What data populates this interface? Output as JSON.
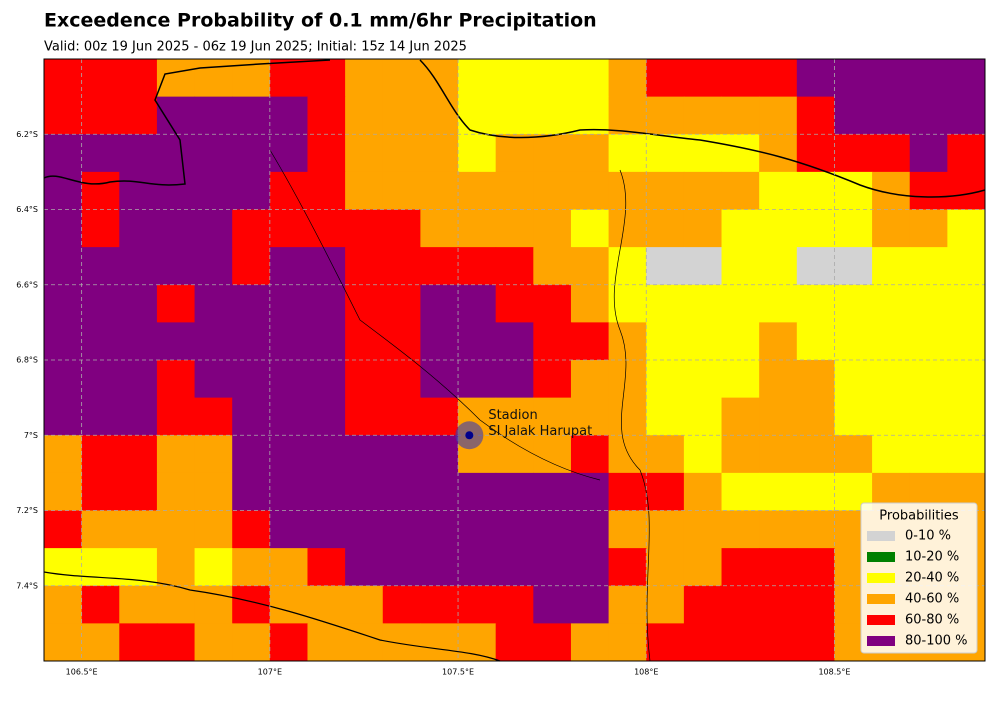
{
  "chart_data": {
    "type": "map",
    "title": "Exceedence Probability of 0.1 mm/6hr Precipitation",
    "subtitle": "Valid: 00z 19 Jun 2025 - 06z 19 Jun 2025; Initial: 15z 14 Jun 2025",
    "xlim": [
      106.4,
      108.9
    ],
    "ylim": [
      -7.6,
      -6.0
    ],
    "xticks": [
      {
        "value": 106.5,
        "label": "106.5°E"
      },
      {
        "value": 107,
        "label": "107°E"
      },
      {
        "value": 107.5,
        "label": "107.5°E"
      },
      {
        "value": 108,
        "label": "108°E"
      },
      {
        "value": 108.5,
        "label": "108.5°E"
      }
    ],
    "yticks": [
      {
        "value": -6.2,
        "label": "6.2°S"
      },
      {
        "value": -6.4,
        "label": "6.4°S"
      },
      {
        "value": -6.6,
        "label": "6.6°S"
      },
      {
        "value": -6.8,
        "label": "6.8°S"
      },
      {
        "value": -7.0,
        "label": "7°S"
      },
      {
        "value": -7.2,
        "label": "7.2°S"
      },
      {
        "value": -7.4,
        "label": "7.4°S"
      }
    ],
    "grid": true,
    "legend": {
      "title": "Probabilities",
      "position": "lower right",
      "labels": [
        "0-10 %",
        "10-20 %",
        "20-40 %",
        "40-60 %",
        "60-80 %",
        "80-100 %"
      ],
      "colors": [
        "#d3d3d3",
        "#008000",
        "#ffff00",
        "#ffa500",
        "#ff0000",
        "#800080"
      ]
    },
    "cells": [
      [
        4,
        4,
        4,
        3,
        3,
        3,
        4,
        4,
        3,
        3,
        3,
        2,
        2,
        2,
        2,
        3,
        4,
        4,
        4,
        4,
        5,
        5,
        5,
        5,
        5
      ],
      [
        4,
        4,
        4,
        5,
        5,
        5,
        5,
        4,
        3,
        3,
        3,
        2,
        2,
        2,
        2,
        3,
        3,
        3,
        3,
        3,
        4,
        5,
        5,
        5,
        5
      ],
      [
        5,
        5,
        5,
        5,
        5,
        5,
        5,
        4,
        3,
        3,
        3,
        2,
        3,
        3,
        3,
        2,
        2,
        2,
        2,
        3,
        4,
        4,
        4,
        5,
        4
      ],
      [
        5,
        4,
        5,
        5,
        5,
        5,
        4,
        4,
        3,
        3,
        3,
        3,
        3,
        3,
        3,
        3,
        3,
        3,
        3,
        2,
        2,
        2,
        3,
        4,
        4
      ],
      [
        5,
        4,
        5,
        5,
        5,
        4,
        4,
        4,
        4,
        4,
        3,
        3,
        3,
        3,
        2,
        3,
        3,
        3,
        2,
        2,
        2,
        2,
        3,
        3,
        2
      ],
      [
        5,
        5,
        5,
        5,
        5,
        4,
        5,
        5,
        4,
        4,
        4,
        4,
        4,
        3,
        3,
        2,
        0,
        0,
        2,
        2,
        0,
        0,
        2,
        2,
        2
      ],
      [
        5,
        5,
        5,
        4,
        5,
        5,
        5,
        5,
        4,
        4,
        5,
        5,
        4,
        4,
        3,
        2,
        2,
        2,
        2,
        2,
        2,
        2,
        2,
        2,
        2
      ],
      [
        5,
        5,
        5,
        5,
        5,
        5,
        5,
        5,
        4,
        4,
        5,
        5,
        5,
        4,
        4,
        3,
        2,
        2,
        2,
        3,
        2,
        2,
        2,
        2,
        2
      ],
      [
        5,
        5,
        5,
        4,
        5,
        5,
        5,
        5,
        4,
        4,
        5,
        5,
        5,
        4,
        3,
        3,
        2,
        2,
        2,
        3,
        3,
        2,
        2,
        2,
        2
      ],
      [
        5,
        5,
        5,
        4,
        4,
        5,
        5,
        5,
        4,
        4,
        4,
        3,
        3,
        3,
        3,
        3,
        2,
        2,
        3,
        3,
        3,
        2,
        2,
        2,
        2
      ],
      [
        3,
        4,
        4,
        3,
        3,
        5,
        5,
        5,
        5,
        5,
        5,
        3,
        3,
        3,
        4,
        3,
        3,
        2,
        3,
        3,
        3,
        3,
        2,
        2,
        2
      ],
      [
        3,
        4,
        4,
        3,
        3,
        5,
        5,
        5,
        5,
        5,
        5,
        5,
        5,
        5,
        5,
        4,
        4,
        3,
        2,
        2,
        2,
        2,
        3,
        3,
        3
      ],
      [
        4,
        3,
        3,
        3,
        3,
        4,
        5,
        5,
        5,
        5,
        5,
        5,
        5,
        5,
        5,
        3,
        3,
        3,
        3,
        3,
        3,
        3,
        3,
        3,
        3
      ],
      [
        2,
        2,
        2,
        3,
        2,
        3,
        3,
        4,
        5,
        5,
        5,
        5,
        5,
        5,
        5,
        4,
        3,
        3,
        4,
        4,
        4,
        3,
        3,
        3,
        3
      ],
      [
        3,
        4,
        3,
        3,
        3,
        4,
        3,
        3,
        3,
        4,
        4,
        4,
        4,
        5,
        5,
        3,
        3,
        4,
        4,
        4,
        4,
        3,
        3,
        3,
        3
      ],
      [
        3,
        3,
        4,
        4,
        3,
        3,
        4,
        3,
        3,
        3,
        3,
        3,
        4,
        4,
        3,
        3,
        4,
        4,
        4,
        4,
        4,
        3,
        3,
        3,
        3
      ]
    ],
    "station": {
      "lon": 107.53,
      "lat": -7.0,
      "label": [
        "Stadion",
        "SI Jalak Harupat"
      ]
    }
  }
}
